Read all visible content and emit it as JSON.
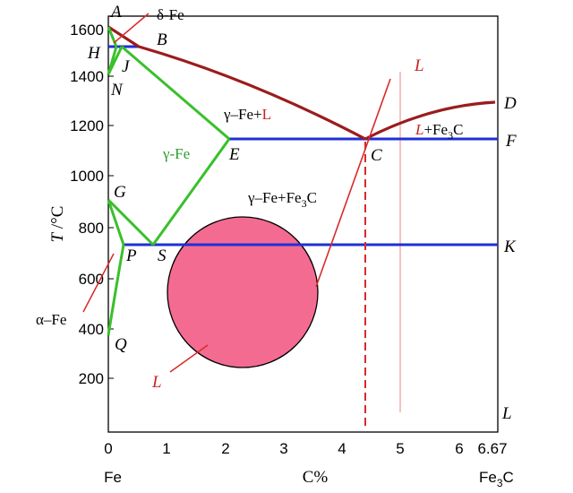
{
  "axis": {
    "y_title_main": "T",
    "y_title_unit": " /°C",
    "y_ticks": [
      "1600",
      "1400",
      "1200",
      "1000",
      "800",
      "600",
      "400",
      "200"
    ],
    "x_ticks": [
      "0",
      "1",
      "2",
      "3",
      "4",
      "5",
      "6",
      "6.67"
    ],
    "x_title": "C%",
    "x_left_label": "Fe",
    "x_right_label_main": "Fe",
    "x_right_label_sub": "3",
    "x_right_label_tail": "C"
  },
  "points": {
    "A": "A",
    "B": "B",
    "H": "H",
    "J": "J",
    "N": "N",
    "D": "D",
    "C": "C",
    "F": "F",
    "E": "E",
    "G": "G",
    "K": "K",
    "P": "P",
    "S": "S",
    "Q": "Q",
    "L_axis": "L"
  },
  "phases": {
    "delta_fe": "δ-Fe",
    "gamma_fe": "γ-Fe",
    "gamma_l_prefix": "γ–Fe+",
    "gamma_l_suffix": "L",
    "l_fe3c_prefix": "L",
    "l_fe3c_mid": "+Fe",
    "l_fe3c_sub": "3",
    "l_fe3c_tail": "C",
    "gamma_fe3c_prefix": "γ–Fe+Fe",
    "gamma_fe3c_sub": "3",
    "gamma_fe3c_tail": "C",
    "alpha_fe": "α–Fe",
    "l_callout_top": "L",
    "l_callout_bottom": "L"
  },
  "colors": {
    "liquidus": "#9b1c1c",
    "isotherm": "#1f2fd6",
    "solvus": "#39c02b",
    "guide": "#d82a2a",
    "circle_fill": "#f46b91",
    "guide_light": "#f0a0a0"
  }
}
